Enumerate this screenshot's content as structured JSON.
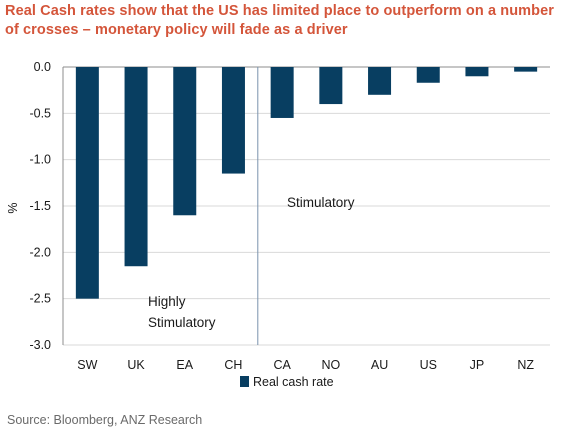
{
  "title": "Real Cash rates show that the US has limited place to outperform on a number of crosses – monetary policy will fade as a driver",
  "source": "Source: Bloomberg, ANZ Research",
  "chart_data": {
    "type": "bar",
    "categories": [
      "SW",
      "UK",
      "EA",
      "CH",
      "CA",
      "NO",
      "AU",
      "US",
      "JP",
      "NZ"
    ],
    "series": [
      {
        "name": "Real cash rate",
        "values": [
          -2.5,
          -2.15,
          -1.6,
          -1.15,
          -0.55,
          -0.4,
          -0.3,
          -0.17,
          -0.1,
          -0.05
        ],
        "color": "#083e61"
      }
    ],
    "ylabel": "%",
    "ylim": [
      -3.0,
      0.0
    ],
    "yticks": [
      "0.0",
      "-0.5",
      "-1.0",
      "-1.5",
      "-2.0",
      "-2.5",
      "-3.0"
    ],
    "grid": true,
    "legend": "bottom-center",
    "divider_after_category": "CH",
    "annotations": {
      "left": [
        "Highly",
        "Stimulatory"
      ],
      "right": "Stimulatory"
    }
  }
}
